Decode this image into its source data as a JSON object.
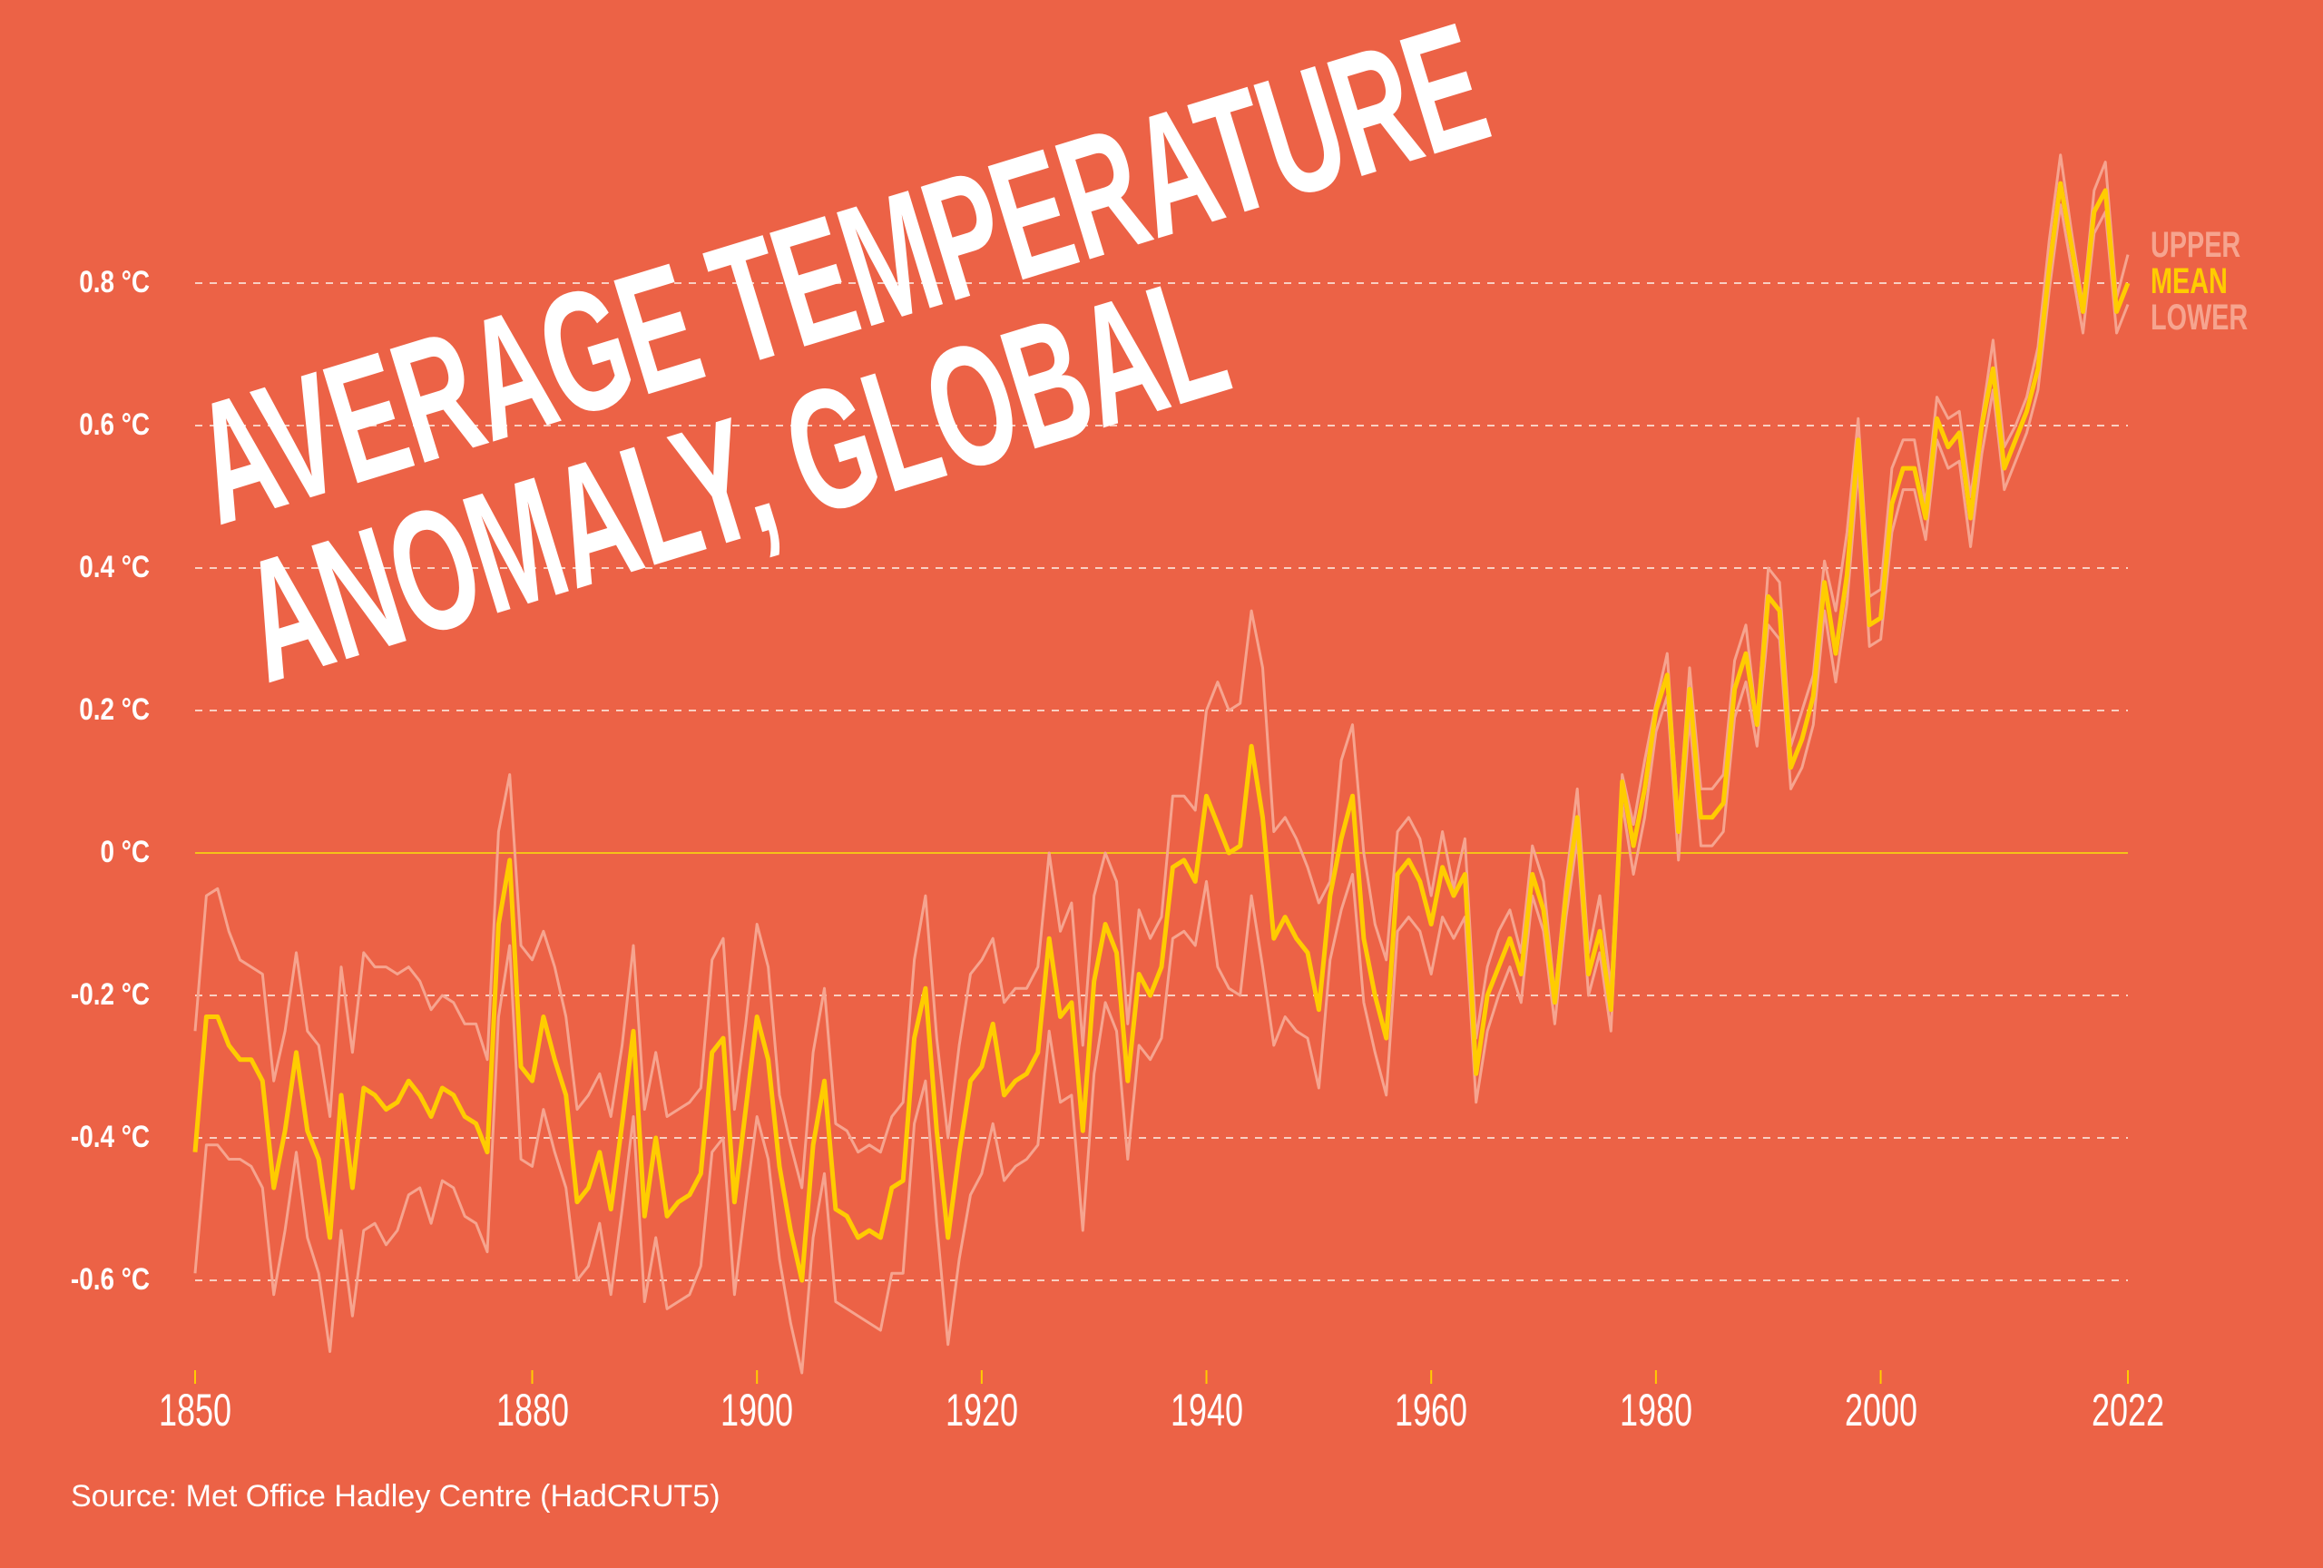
{
  "colors": {
    "background": "#EC6246",
    "mean": "#FFCC00",
    "bounds": "#F6A48F",
    "grid": "#F9CFC2",
    "zero_line": "#F4C21A",
    "text": "#FFFFFF"
  },
  "title": {
    "line1": "AVERAGE TEMPERATURE",
    "line2": "ANOMALY, GLOBAL"
  },
  "source": "Source: Met Office Hadley Centre (HadCRUT5)",
  "chart_data": {
    "type": "line",
    "title": "AVERAGE TEMPERATURE ANOMALY, GLOBAL",
    "xlabel": "",
    "ylabel": "",
    "xlim": [
      1850,
      2022
    ],
    "ylim": [
      -0.6,
      0.8
    ],
    "grid": true,
    "legend_position": "right",
    "x_ticks": [
      1850,
      1880,
      1900,
      1920,
      1940,
      1960,
      1980,
      2000,
      2022
    ],
    "x_tick_labels": [
      "1850",
      "1880",
      "1900",
      "1920",
      "1940",
      "1960",
      "1980",
      "2000",
      "2022"
    ],
    "y_ticks": [
      0.8,
      0.6,
      0.4,
      0.2,
      0,
      -0.2,
      -0.4,
      -0.6
    ],
    "y_tick_labels": [
      "0.8 °C",
      "0.6 °C",
      "0.4 °C",
      "0.2 °C",
      "0 °C",
      "-0.2 °C",
      "-0.4 °C",
      "-0.6 °C"
    ],
    "x_start": 1850,
    "series": [
      {
        "name": "UPPER",
        "values": [
          -0.25,
          -0.06,
          -0.05,
          -0.11,
          -0.15,
          -0.16,
          -0.17,
          -0.32,
          -0.25,
          -0.14,
          -0.25,
          -0.27,
          -0.37,
          -0.16,
          -0.28,
          -0.14,
          -0.16,
          -0.16,
          -0.17,
          -0.16,
          -0.18,
          -0.22,
          -0.2,
          -0.21,
          -0.24,
          -0.24,
          -0.29,
          0.03,
          0.11,
          -0.13,
          -0.15,
          -0.11,
          -0.16,
          -0.23,
          -0.36,
          -0.34,
          -0.31,
          -0.37,
          -0.27,
          -0.13,
          -0.36,
          -0.28,
          -0.37,
          -0.36,
          -0.35,
          -0.33,
          -0.15,
          -0.12,
          -0.36,
          -0.24,
          -0.1,
          -0.16,
          -0.34,
          -0.41,
          -0.47,
          -0.28,
          -0.19,
          -0.38,
          -0.39,
          -0.42,
          -0.41,
          -0.42,
          -0.37,
          -0.35,
          -0.15,
          -0.06,
          -0.26,
          -0.4,
          -0.27,
          -0.17,
          -0.15,
          -0.12,
          -0.21,
          -0.19,
          -0.19,
          -0.16,
          0.0,
          -0.11,
          -0.07,
          -0.27,
          -0.06,
          0.0,
          -0.04,
          -0.24,
          -0.08,
          -0.12,
          -0.09,
          0.08,
          0.08,
          0.06,
          0.2,
          0.24,
          0.2,
          0.21,
          0.34,
          0.26,
          0.03,
          0.05,
          0.02,
          -0.02,
          -0.07,
          -0.04,
          0.13,
          0.18,
          0.0,
          -0.1,
          -0.15,
          0.03,
          0.05,
          0.02,
          -0.06,
          0.03,
          -0.05,
          0.02,
          -0.26,
          -0.16,
          -0.11,
          -0.08,
          -0.14,
          0.01,
          -0.04,
          -0.2,
          -0.04,
          0.09,
          -0.14,
          -0.06,
          -0.19,
          0.11,
          0.04,
          0.13,
          0.21,
          0.28,
          0.04,
          0.26,
          0.09,
          0.09,
          0.11,
          0.27,
          0.32,
          0.18,
          0.4,
          0.38,
          0.15,
          0.2,
          0.25,
          0.41,
          0.34,
          0.45,
          0.61,
          0.36,
          0.37,
          0.54,
          0.58,
          0.58,
          0.49,
          0.64,
          0.61,
          0.62,
          0.5,
          0.61,
          0.72,
          0.57,
          0.6,
          0.64,
          0.71,
          0.86,
          0.98,
          0.87,
          0.77,
          0.93,
          0.97,
          0.78,
          0.84
        ]
      },
      {
        "name": "MEAN",
        "values": [
          -0.42,
          -0.23,
          -0.23,
          -0.27,
          -0.29,
          -0.29,
          -0.32,
          -0.47,
          -0.39,
          -0.28,
          -0.39,
          -0.43,
          -0.54,
          -0.34,
          -0.47,
          -0.33,
          -0.34,
          -0.36,
          -0.35,
          -0.32,
          -0.34,
          -0.37,
          -0.33,
          -0.34,
          -0.37,
          -0.38,
          -0.42,
          -0.1,
          -0.01,
          -0.3,
          -0.32,
          -0.23,
          -0.29,
          -0.34,
          -0.49,
          -0.47,
          -0.42,
          -0.5,
          -0.38,
          -0.25,
          -0.51,
          -0.4,
          -0.51,
          -0.49,
          -0.48,
          -0.45,
          -0.28,
          -0.26,
          -0.49,
          -0.36,
          -0.23,
          -0.29,
          -0.44,
          -0.53,
          -0.6,
          -0.41,
          -0.32,
          -0.5,
          -0.51,
          -0.54,
          -0.53,
          -0.54,
          -0.47,
          -0.46,
          -0.26,
          -0.19,
          -0.39,
          -0.54,
          -0.42,
          -0.32,
          -0.3,
          -0.24,
          -0.34,
          -0.32,
          -0.31,
          -0.28,
          -0.12,
          -0.23,
          -0.21,
          -0.39,
          -0.18,
          -0.1,
          -0.14,
          -0.32,
          -0.17,
          -0.2,
          -0.16,
          -0.02,
          -0.01,
          -0.04,
          0.08,
          0.04,
          0.0,
          0.01,
          0.15,
          0.05,
          -0.12,
          -0.09,
          -0.12,
          -0.14,
          -0.22,
          -0.06,
          0.02,
          0.08,
          -0.12,
          -0.2,
          -0.26,
          -0.03,
          -0.01,
          -0.04,
          -0.1,
          -0.02,
          -0.06,
          -0.03,
          -0.31,
          -0.2,
          -0.16,
          -0.12,
          -0.17,
          -0.03,
          -0.08,
          -0.21,
          -0.06,
          0.05,
          -0.17,
          -0.11,
          -0.22,
          0.1,
          0.01,
          0.09,
          0.2,
          0.25,
          0.03,
          0.23,
          0.05,
          0.05,
          0.07,
          0.23,
          0.28,
          0.18,
          0.36,
          0.34,
          0.12,
          0.16,
          0.22,
          0.38,
          0.28,
          0.39,
          0.58,
          0.32,
          0.33,
          0.49,
          0.54,
          0.54,
          0.47,
          0.61,
          0.57,
          0.59,
          0.47,
          0.6,
          0.68,
          0.54,
          0.58,
          0.62,
          0.68,
          0.82,
          0.94,
          0.85,
          0.76,
          0.9,
          0.93,
          0.76,
          0.8
        ]
      },
      {
        "name": "LOWER",
        "values": [
          -0.59,
          -0.41,
          -0.41,
          -0.43,
          -0.43,
          -0.44,
          -0.47,
          -0.62,
          -0.53,
          -0.42,
          -0.54,
          -0.59,
          -0.7,
          -0.53,
          -0.65,
          -0.53,
          -0.52,
          -0.55,
          -0.53,
          -0.48,
          -0.47,
          -0.52,
          -0.46,
          -0.47,
          -0.51,
          -0.52,
          -0.56,
          -0.23,
          -0.13,
          -0.43,
          -0.44,
          -0.36,
          -0.42,
          -0.47,
          -0.6,
          -0.58,
          -0.52,
          -0.62,
          -0.5,
          -0.37,
          -0.63,
          -0.54,
          -0.64,
          -0.63,
          -0.62,
          -0.58,
          -0.42,
          -0.4,
          -0.62,
          -0.49,
          -0.37,
          -0.43,
          -0.57,
          -0.66,
          -0.73,
          -0.54,
          -0.45,
          -0.63,
          -0.64,
          -0.65,
          -0.66,
          -0.67,
          -0.59,
          -0.59,
          -0.38,
          -0.32,
          -0.52,
          -0.69,
          -0.57,
          -0.48,
          -0.45,
          -0.38,
          -0.46,
          -0.44,
          -0.43,
          -0.41,
          -0.25,
          -0.35,
          -0.34,
          -0.53,
          -0.31,
          -0.21,
          -0.25,
          -0.43,
          -0.27,
          -0.29,
          -0.26,
          -0.12,
          -0.11,
          -0.13,
          -0.04,
          -0.16,
          -0.19,
          -0.2,
          -0.06,
          -0.16,
          -0.27,
          -0.23,
          -0.25,
          -0.26,
          -0.33,
          -0.15,
          -0.08,
          -0.03,
          -0.21,
          -0.28,
          -0.34,
          -0.11,
          -0.09,
          -0.11,
          -0.17,
          -0.09,
          -0.12,
          -0.09,
          -0.35,
          -0.25,
          -0.2,
          -0.16,
          -0.21,
          -0.06,
          -0.11,
          -0.24,
          -0.09,
          0.02,
          -0.2,
          -0.14,
          -0.25,
          0.07,
          -0.03,
          0.05,
          0.17,
          0.22,
          -0.01,
          0.19,
          0.01,
          0.01,
          0.03,
          0.19,
          0.24,
          0.15,
          0.32,
          0.3,
          0.09,
          0.12,
          0.18,
          0.34,
          0.24,
          0.35,
          0.54,
          0.29,
          0.3,
          0.45,
          0.51,
          0.51,
          0.44,
          0.58,
          0.54,
          0.55,
          0.43,
          0.56,
          0.65,
          0.51,
          0.55,
          0.59,
          0.65,
          0.79,
          0.91,
          0.82,
          0.73,
          0.87,
          0.9,
          0.73,
          0.77
        ]
      }
    ]
  },
  "legend": {
    "upper": "UPPER",
    "mean": "MEAN",
    "lower": "LOWER"
  }
}
